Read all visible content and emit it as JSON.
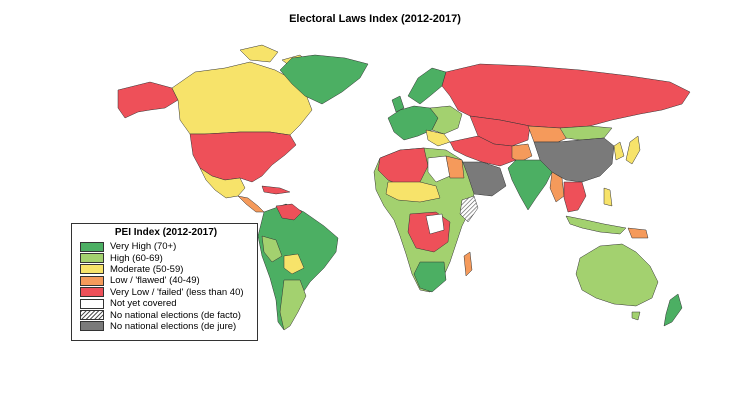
{
  "title": "Electoral Laws Index (2012-2017)",
  "legend": {
    "title": "PEI Index (2012-2017)",
    "items": [
      {
        "label": "Very High (70+)",
        "color": "#4caf63"
      },
      {
        "label": "High (60-69)",
        "color": "#a3d16f"
      },
      {
        "label": "Moderate (50-59)",
        "color": "#f7e36a"
      },
      {
        "label": "Low / 'flawed' (40-49)",
        "color": "#f59a5b"
      },
      {
        "label": "Very Low / 'failed' (less than 40)",
        "color": "#ee5059"
      },
      {
        "label": "Not yet covered",
        "color": "#ffffff"
      },
      {
        "label": "No national elections (de facto)",
        "color": "hatch"
      },
      {
        "label": "No national elections (de jure)",
        "color": "#7a7a7a"
      }
    ]
  }
}
